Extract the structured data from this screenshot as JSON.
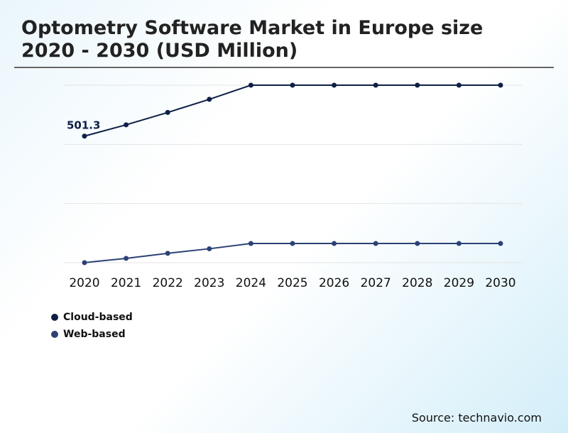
{
  "chart_data": {
    "type": "line",
    "title": "Optometry Software Market in Europe size 2020 - 2030 (USD Million)",
    "title_lines": [
      "Optometry Software Market in Europe size",
      "2020 - 2030 (USD Million)"
    ],
    "x": [
      "2020",
      "2021",
      "2022",
      "2023",
      "2024",
      "2025",
      "2026",
      "2027",
      "2028",
      "2029",
      "2030"
    ],
    "series": [
      {
        "name": "Cloud-based",
        "color": "#0d1f45",
        "values": [
          501.3,
          546,
          595,
          647,
          703,
          703,
          703,
          703,
          703,
          703,
          703
        ]
      },
      {
        "name": "Web-based",
        "color": "#2c4275",
        "values": [
          0,
          17,
          37,
          55,
          76,
          76,
          76,
          76,
          76,
          76,
          76
        ]
      }
    ],
    "data_labels": [
      {
        "series": "Cloud-based",
        "x": "2020",
        "text": "501.3"
      }
    ],
    "ylim": [
      0,
      703
    ],
    "grid": true,
    "yaxis_labels_shown": false,
    "legend_position": "bottom-left"
  },
  "source": "Source: technavio.com"
}
